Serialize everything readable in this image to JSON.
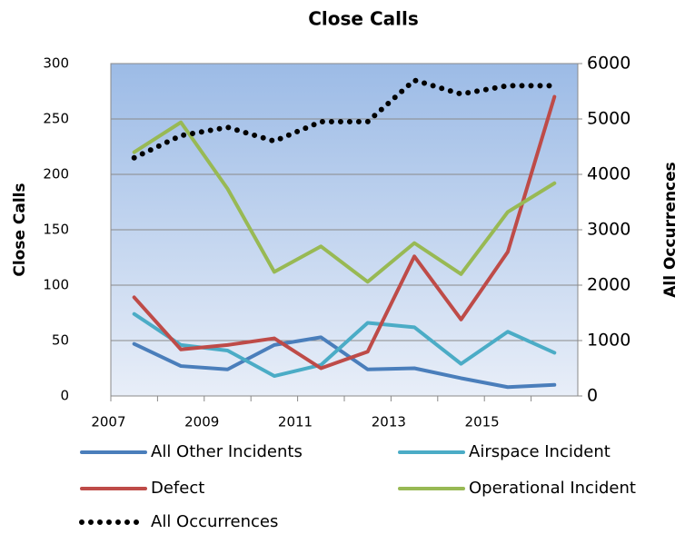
{
  "chart_data": {
    "type": "line",
    "title": "Close Calls",
    "y_label": "Close Calls",
    "y2_label": "All Occurrences",
    "categories": [
      "2007",
      null,
      "2009",
      null,
      "2011",
      null,
      "2013",
      null,
      "2015",
      null
    ],
    "ylim": [
      0,
      300
    ],
    "yticks": [
      0,
      50,
      100,
      150,
      200,
      250,
      300
    ],
    "y2lim": [
      0,
      6000
    ],
    "y2ticks": [
      0,
      1000,
      2000,
      3000,
      4000,
      5000,
      6000
    ],
    "grid": true,
    "series": [
      {
        "name": "All Other Incidents",
        "color": "#4a7ebb",
        "values": [
          47,
          27,
          24,
          46,
          53,
          24,
          25,
          16,
          8,
          10
        ]
      },
      {
        "name": "Airspace Incident",
        "color": "#4bacc6",
        "values": [
          74,
          46,
          41,
          18,
          28,
          66,
          62,
          29,
          58,
          39
        ]
      },
      {
        "name": "Defect",
        "color": "#be4b48",
        "values": [
          89,
          42,
          46,
          52,
          25,
          40,
          126,
          69,
          130,
          270
        ]
      },
      {
        "name": "Operational Incident",
        "color": "#98b954",
        "values": [
          220,
          247,
          187,
          112,
          135,
          103,
          138,
          110,
          166,
          192
        ]
      },
      {
        "name": "All Occurrences",
        "color": "#000000",
        "axis": "y2",
        "dotted": true,
        "values": [
          4300,
          4700,
          4850,
          4600,
          4950,
          4950,
          5700,
          5450,
          5600,
          5600
        ]
      }
    ]
  }
}
